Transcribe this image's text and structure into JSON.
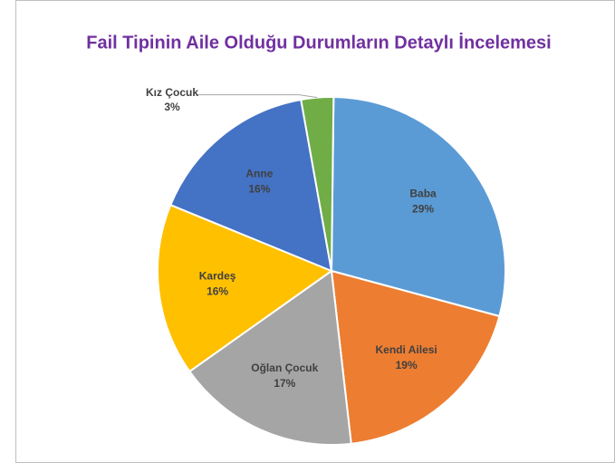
{
  "chart_data": {
    "type": "pie",
    "title": "Fail Tipinin Aile Olduğu Durumların Detaylı İncelemesi",
    "categories": [
      "Baba",
      "Kendi Ailesi",
      "Oğlan Çocuk",
      "Kardeş",
      "Anne",
      "Kız Çocuk"
    ],
    "values": [
      29,
      19,
      17,
      16,
      16,
      3
    ],
    "value_labels": [
      "29%",
      "19%",
      "17%",
      "16%",
      "16%",
      "3%"
    ],
    "colors": [
      "#5b9bd5",
      "#ed7d31",
      "#a5a5a5",
      "#ffc000",
      "#4472c4",
      "#70ad47"
    ]
  }
}
